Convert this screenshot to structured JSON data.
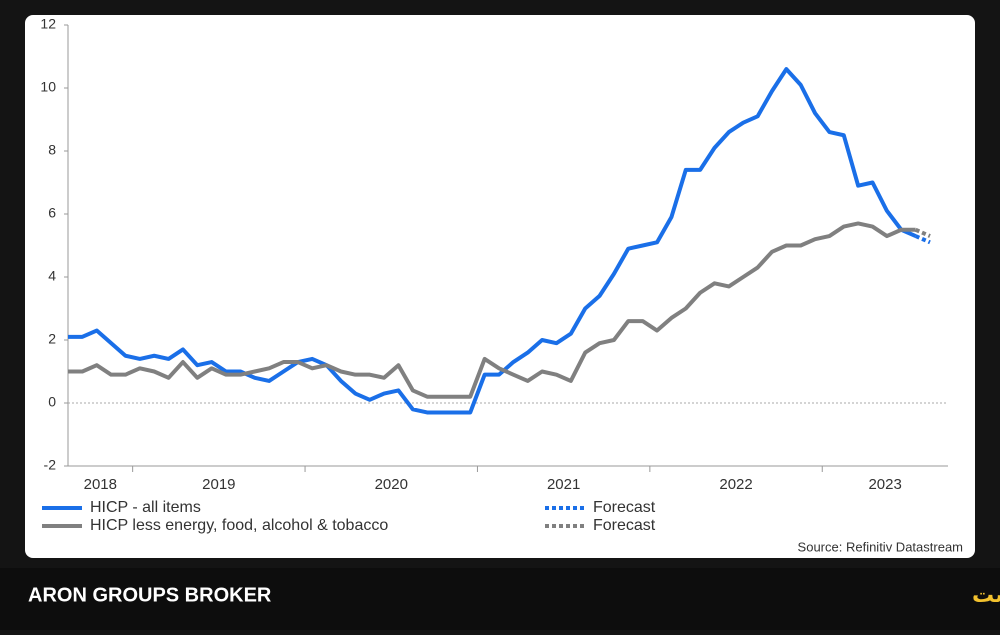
{
  "chart_data": {
    "type": "line",
    "source": "Source: Refinitiv Datastream",
    "brand": "ARON GROUPS BROKER",
    "title": "تورم هسته در حوزه یورو همچنان بالا است",
    "categories": [
      null,
      null,
      null,
      null,
      null,
      null,
      null,
      null,
      null,
      null,
      null,
      null,
      null,
      null,
      null,
      null,
      null,
      null,
      null,
      null,
      null,
      null,
      null,
      null,
      null,
      null,
      null,
      null,
      null,
      null,
      null,
      null,
      null,
      null,
      null,
      null,
      null,
      null,
      null,
      null,
      null,
      null,
      null,
      null,
      null,
      null,
      null,
      null,
      null,
      null,
      null,
      null,
      null,
      null,
      null,
      null,
      null,
      null,
      null,
      null,
      null
    ],
    "year_labels": [
      "2018",
      "2019",
      "2020",
      "2021",
      "2022",
      "2023"
    ],
    "ylim": [
      -2,
      12
    ],
    "yticks": [
      -2,
      0,
      2,
      4,
      6,
      8,
      10,
      12
    ],
    "zero_line": true,
    "series": [
      {
        "name": "HICP - all items",
        "color": "#1a6fe8",
        "dash": false,
        "values": [
          2.1,
          2.1,
          2.3,
          1.9,
          1.5,
          1.4,
          1.5,
          1.4,
          1.7,
          1.2,
          1.3,
          1.0,
          1.0,
          0.8,
          0.7,
          1.0,
          1.3,
          1.4,
          1.2,
          0.7,
          0.3,
          0.1,
          0.3,
          0.4,
          -0.2,
          -0.3,
          -0.3,
          -0.3,
          -0.3,
          0.9,
          0.9,
          1.3,
          1.6,
          2.0,
          1.9,
          2.2,
          3.0,
          3.4,
          4.1,
          4.9,
          5.0,
          5.1,
          5.9,
          7.4,
          7.4,
          8.1,
          8.6,
          8.9,
          9.1,
          9.9,
          10.6,
          10.1,
          9.2,
          8.6,
          8.5,
          6.9,
          7.0,
          6.1,
          5.5,
          5.3,
          null
        ]
      },
      {
        "name": "HICP less energy, food, alcohol & tobacco",
        "color": "#808080",
        "dash": false,
        "values": [
          1.0,
          1.0,
          1.2,
          0.9,
          0.9,
          1.1,
          1.0,
          0.8,
          1.3,
          0.8,
          1.1,
          0.9,
          0.9,
          1.0,
          1.1,
          1.3,
          1.3,
          1.1,
          1.2,
          1.0,
          0.9,
          0.9,
          0.8,
          1.2,
          0.4,
          0.2,
          0.2,
          0.2,
          0.2,
          1.4,
          1.1,
          0.9,
          0.7,
          1.0,
          0.9,
          0.7,
          1.6,
          1.9,
          2.0,
          2.6,
          2.6,
          2.3,
          2.7,
          3.0,
          3.5,
          3.8,
          3.7,
          4.0,
          4.3,
          4.8,
          5.0,
          5.0,
          5.2,
          5.3,
          5.6,
          5.7,
          5.6,
          5.3,
          5.5,
          5.5,
          null
        ]
      },
      {
        "name": "Forecast",
        "color": "#1a6fe8",
        "dash": true,
        "values": [
          null,
          null,
          null,
          null,
          null,
          null,
          null,
          null,
          null,
          null,
          null,
          null,
          null,
          null,
          null,
          null,
          null,
          null,
          null,
          null,
          null,
          null,
          null,
          null,
          null,
          null,
          null,
          null,
          null,
          null,
          null,
          null,
          null,
          null,
          null,
          null,
          null,
          null,
          null,
          null,
          null,
          null,
          null,
          null,
          null,
          null,
          null,
          null,
          null,
          null,
          null,
          null,
          null,
          null,
          null,
          null,
          null,
          null,
          null,
          5.3,
          5.1
        ]
      },
      {
        "name": "Forecast",
        "color": "#808080",
        "dash": true,
        "values": [
          null,
          null,
          null,
          null,
          null,
          null,
          null,
          null,
          null,
          null,
          null,
          null,
          null,
          null,
          null,
          null,
          null,
          null,
          null,
          null,
          null,
          null,
          null,
          null,
          null,
          null,
          null,
          null,
          null,
          null,
          null,
          null,
          null,
          null,
          null,
          null,
          null,
          null,
          null,
          null,
          null,
          null,
          null,
          null,
          null,
          null,
          null,
          null,
          null,
          null,
          null,
          null,
          null,
          null,
          null,
          null,
          null,
          null,
          null,
          5.5,
          5.3
        ]
      }
    ]
  }
}
